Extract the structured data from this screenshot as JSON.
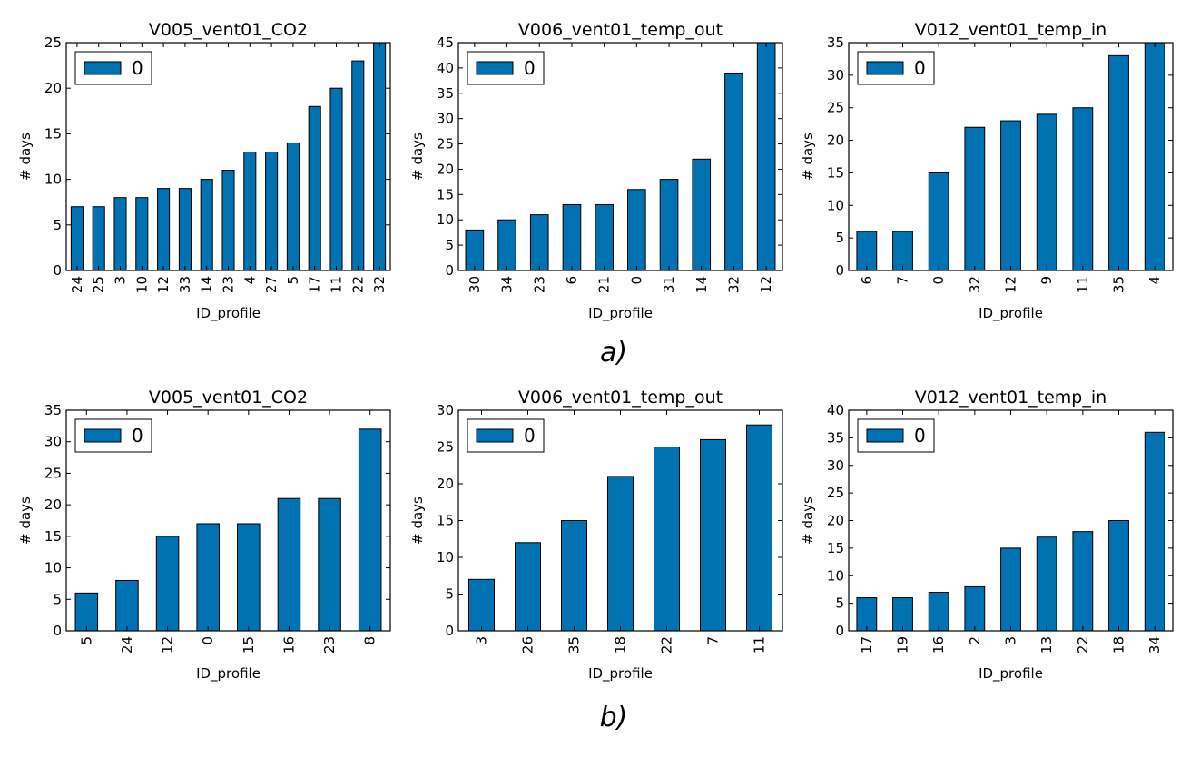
{
  "bar_color": "#0072b2",
  "captions": [
    "a)",
    "b)"
  ],
  "chart_data": [
    {
      "type": "bar",
      "title": "V005_vent01_CO2",
      "xlabel": "ID_profile",
      "ylabel": "# days",
      "ylim": [
        0,
        25
      ],
      "yticks": [
        0,
        5,
        10,
        15,
        20,
        25
      ],
      "legend": "top-left",
      "grid": false,
      "categories": [
        "24",
        "25",
        "3",
        "10",
        "12",
        "33",
        "14",
        "23",
        "4",
        "27",
        "5",
        "17",
        "11",
        "22",
        "32"
      ],
      "series": [
        {
          "name": "0",
          "values": [
            7,
            7,
            8,
            8,
            9,
            9,
            10,
            11,
            13,
            13,
            14,
            18,
            20,
            23,
            25
          ]
        }
      ]
    },
    {
      "type": "bar",
      "title": "V006_vent01_temp_out",
      "xlabel": "ID_profile",
      "ylabel": "# days",
      "ylim": [
        0,
        45
      ],
      "yticks": [
        0,
        5,
        10,
        15,
        20,
        25,
        30,
        35,
        40,
        45
      ],
      "legend": "top-left",
      "grid": false,
      "categories": [
        "30",
        "34",
        "23",
        "6",
        "21",
        "0",
        "31",
        "14",
        "32",
        "12"
      ],
      "series": [
        {
          "name": "0",
          "values": [
            8,
            10,
            11,
            13,
            13,
            16,
            18,
            22,
            39,
            45
          ]
        }
      ]
    },
    {
      "type": "bar",
      "title": "V012_vent01_temp_in",
      "xlabel": "ID_profile",
      "ylabel": "# days",
      "ylim": [
        0,
        35
      ],
      "yticks": [
        0,
        5,
        10,
        15,
        20,
        25,
        30,
        35
      ],
      "legend": "top-left",
      "grid": false,
      "categories": [
        "6",
        "7",
        "0",
        "32",
        "12",
        "9",
        "11",
        "35",
        "4"
      ],
      "series": [
        {
          "name": "0",
          "values": [
            6,
            6,
            15,
            22,
            23,
            24,
            25,
            33,
            35
          ]
        }
      ]
    },
    {
      "type": "bar",
      "title": "V005_vent01_CO2",
      "xlabel": "ID_profile",
      "ylabel": "# days",
      "ylim": [
        0,
        35
      ],
      "yticks": [
        0,
        5,
        10,
        15,
        20,
        25,
        30,
        35
      ],
      "legend": "top-left",
      "grid": false,
      "categories": [
        "5",
        "24",
        "12",
        "0",
        "15",
        "16",
        "23",
        "8"
      ],
      "series": [
        {
          "name": "0",
          "values": [
            6,
            8,
            15,
            17,
            17,
            21,
            21,
            32
          ]
        }
      ]
    },
    {
      "type": "bar",
      "title": "V006_vent01_temp_out",
      "xlabel": "ID_profile",
      "ylabel": "# days",
      "ylim": [
        0,
        30
      ],
      "yticks": [
        0,
        5,
        10,
        15,
        20,
        25,
        30
      ],
      "legend": "top-left",
      "grid": false,
      "categories": [
        "3",
        "26",
        "35",
        "18",
        "22",
        "7",
        "11"
      ],
      "series": [
        {
          "name": "0",
          "values": [
            7,
            12,
            15,
            21,
            25,
            26,
            28
          ]
        }
      ]
    },
    {
      "type": "bar",
      "title": "V012_vent01_temp_in",
      "xlabel": "ID_profile",
      "ylabel": "# days",
      "ylim": [
        0,
        40
      ],
      "yticks": [
        0,
        5,
        10,
        15,
        20,
        25,
        30,
        35,
        40
      ],
      "legend": "top-left",
      "grid": false,
      "categories": [
        "17",
        "19",
        "16",
        "2",
        "3",
        "13",
        "22",
        "18",
        "34"
      ],
      "series": [
        {
          "name": "0",
          "values": [
            6,
            6,
            7,
            8,
            15,
            17,
            18,
            20,
            36
          ]
        }
      ]
    }
  ]
}
